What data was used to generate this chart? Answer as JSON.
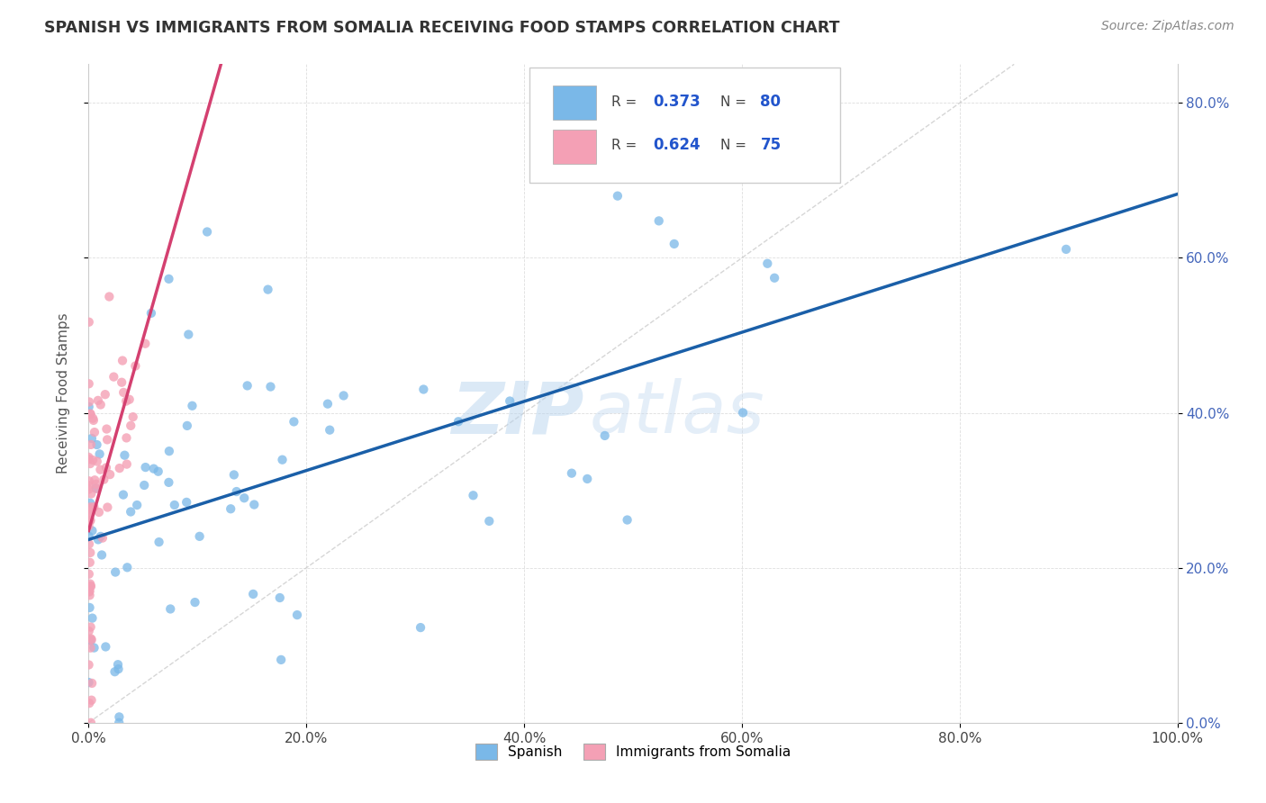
{
  "title": "SPANISH VS IMMIGRANTS FROM SOMALIA RECEIVING FOOD STAMPS CORRELATION CHART",
  "source": "Source: ZipAtlas.com",
  "ylabel": "Receiving Food Stamps",
  "legend_labels": [
    "Spanish",
    "Immigrants from Somalia"
  ],
  "R1": 0.373,
  "N1": 80,
  "R2": 0.624,
  "N2": 75,
  "color_blue": "#7ab8e8",
  "color_pink": "#f4a0b5",
  "color_blue_line": "#1a5fa8",
  "color_pink_line": "#d44070",
  "color_diag": "#cccccc",
  "watermark_zip": "ZIP",
  "watermark_atlas": "atlas",
  "background": "#ffffff",
  "xlim": [
    0.0,
    1.0
  ],
  "ylim": [
    0.0,
    0.85
  ],
  "xtick_vals": [
    0.0,
    0.2,
    0.4,
    0.6,
    0.8,
    1.0
  ],
  "ytick_vals": [
    0.0,
    0.2,
    0.4,
    0.6,
    0.8
  ],
  "right_ytick_labels": [
    "0.0%",
    "20.0%",
    "40.0%",
    "60.0%",
    "80.0%"
  ]
}
